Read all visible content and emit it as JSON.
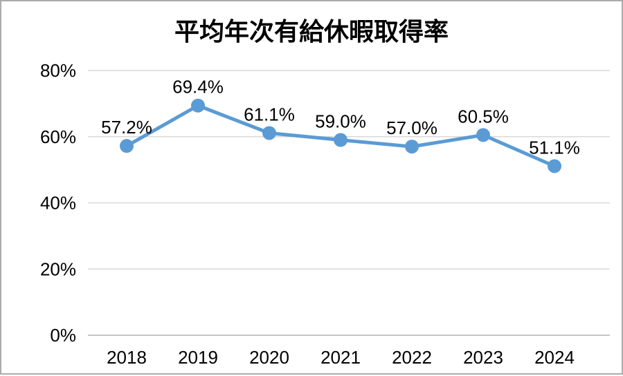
{
  "chart_data": {
    "type": "line",
    "title": "平均年次有給休暇取得率",
    "categories": [
      "2018",
      "2019",
      "2020",
      "2021",
      "2022",
      "2023",
      "2024"
    ],
    "values": [
      57.2,
      69.4,
      61.1,
      59.0,
      57.0,
      60.5,
      51.1
    ],
    "data_labels": [
      "57.2%",
      "69.4%",
      "61.1%",
      "59.0%",
      "57.0%",
      "60.5%",
      "51.1%"
    ],
    "y_ticks": [
      {
        "value": 0,
        "label": "0%"
      },
      {
        "value": 20,
        "label": "20%"
      },
      {
        "value": 40,
        "label": "40%"
      },
      {
        "value": 60,
        "label": "60%"
      },
      {
        "value": 80,
        "label": "80%"
      }
    ],
    "ylim": [
      0,
      80
    ],
    "xlabel": "",
    "ylabel": "",
    "grid": true,
    "legend": "none",
    "colors": {
      "line": "#5B9BD5",
      "marker": "#5B9BD5",
      "gridline": "#D9D9D9",
      "axis_line": "#C4C4C4",
      "text": "#000000",
      "card_border": "#ABABAB",
      "background": "#FFFFFF"
    }
  }
}
